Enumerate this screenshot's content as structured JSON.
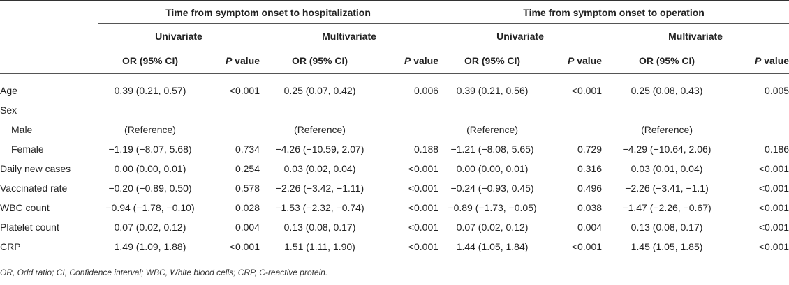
{
  "table": {
    "group_headers": [
      "Time from symptom onset to hospitalization",
      "Time from symptom onset to operation"
    ],
    "sub_headers": [
      "Univariate",
      "Multivariate",
      "Univariate",
      "Multivariate"
    ],
    "col_or": "OR (95% CI)",
    "col_p_italic": "P",
    "col_p_rest": " value",
    "rows": [
      {
        "label": "Age",
        "cells": [
          "0.39 (0.21, 0.57)",
          "<0.001",
          "0.25 (0.07, 0.42)",
          "0.006",
          "0.39 (0.21, 0.56)",
          "<0.001",
          "0.25 (0.08, 0.43)",
          "0.005"
        ]
      },
      {
        "label": "Sex",
        "cells": [
          "",
          "",
          "",
          "",
          "",
          "",
          "",
          ""
        ]
      },
      {
        "label": "Male",
        "cells": [
          "(Reference)",
          "",
          "(Reference)",
          "",
          "(Reference)",
          "",
          "(Reference)",
          ""
        ]
      },
      {
        "label": "Female",
        "cells": [
          "−1.19 (−8.07, 5.68)",
          "0.734",
          "−4.26 (−10.59, 2.07)",
          "0.188",
          "−1.21 (−8.08, 5.65)",
          "0.729",
          "−4.29 (−10.64, 2.06)",
          "0.186"
        ]
      },
      {
        "label": "Daily new cases",
        "cells": [
          "0.00 (0.00, 0.01)",
          "0.254",
          "0.03 (0.02, 0.04)",
          "<0.001",
          "0.00 (0.00, 0.01)",
          "0.316",
          "0.03 (0.01, 0.04)",
          "<0.001"
        ]
      },
      {
        "label": "Vaccinated rate",
        "cells": [
          "−0.20 (−0.89, 0.50)",
          "0.578",
          "−2.26 (−3.42, −1.11)",
          "<0.001",
          "−0.24 (−0.93, 0.45)",
          "0.496",
          "−2.26 (−3.41, −1.1)",
          "<0.001"
        ]
      },
      {
        "label": "WBC count",
        "cells": [
          "−0.94 (−1.78, −0.10)",
          "0.028",
          "−1.53 (−2.32, −0.74)",
          "<0.001",
          "−0.89 (−1.73, −0.05)",
          "0.038",
          "−1.47 (−2.26, −0.67)",
          "<0.001"
        ]
      },
      {
        "label": "Platelet count",
        "cells": [
          "0.07 (0.02, 0.12)",
          "0.004",
          "0.13 (0.08, 0.17)",
          "<0.001",
          "0.07 (0.02, 0.12)",
          "0.004",
          "0.13 (0.08, 0.17)",
          "<0.001"
        ]
      },
      {
        "label": "CRP",
        "cells": [
          "1.49 (1.09, 1.88)",
          "<0.001",
          "1.51 (1.11, 1.90)",
          "<0.001",
          "1.44 (1.05, 1.84)",
          "<0.001",
          "1.45 (1.05, 1.85)",
          "<0.001"
        ]
      }
    ]
  },
  "footnote": "OR, Odd ratio; CI, Confidence interval; WBC, White blood cells; CRP, C-reactive protein."
}
